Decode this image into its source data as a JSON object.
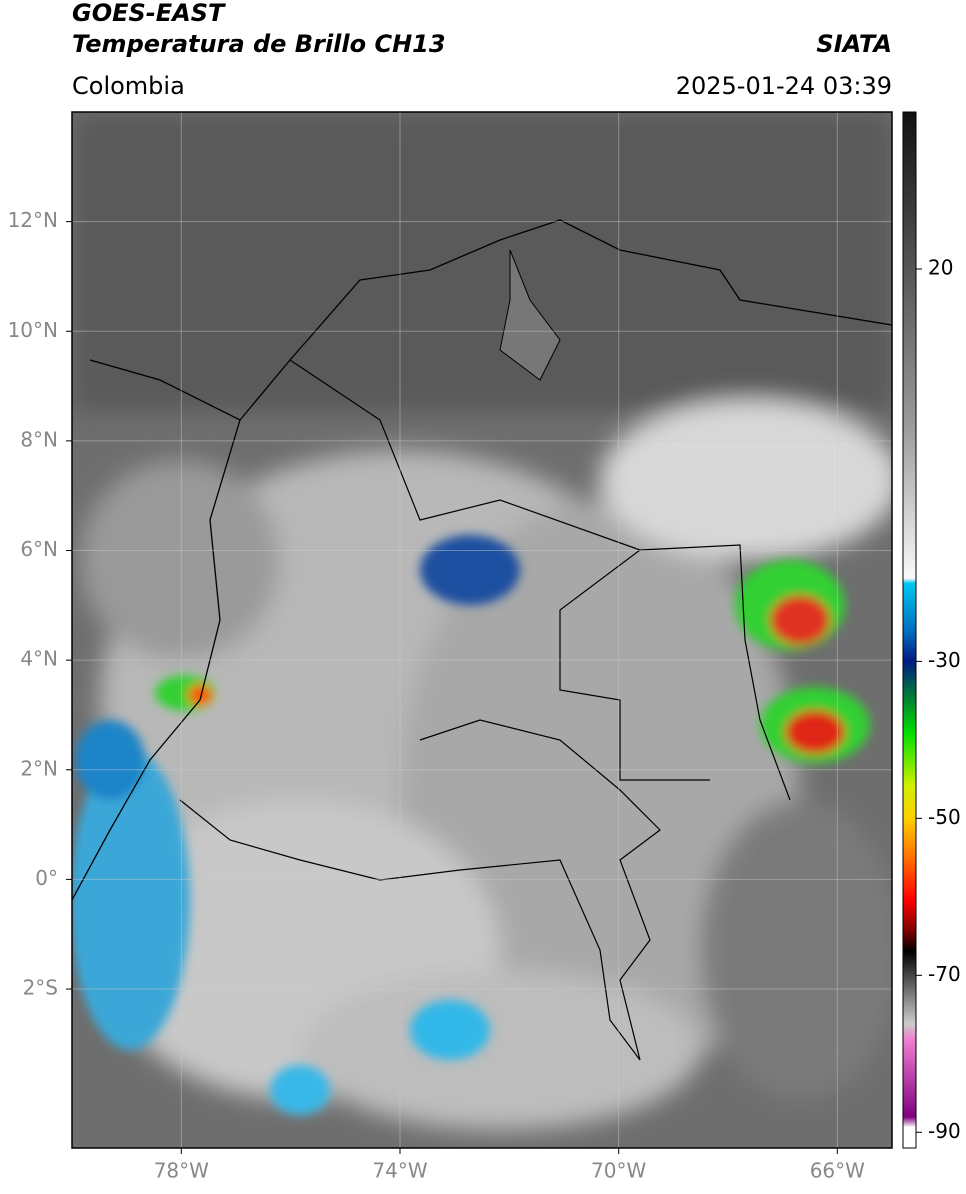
{
  "chart_data": {
    "type": "map",
    "title": "GOES-EAST",
    "subtitle": "Temperatura de Brillo CH13",
    "source": "SIATA",
    "region": "Colombia",
    "timestamp": "2025-01-24 03:39",
    "xlim": [
      -80,
      -65
    ],
    "ylim": [
      -4.9,
      14
    ],
    "xticks": [
      {
        "value": -78,
        "label": "78°W"
      },
      {
        "value": -74,
        "label": "74°W"
      },
      {
        "value": -70,
        "label": "70°W"
      },
      {
        "value": -66,
        "label": "66°W"
      }
    ],
    "yticks": [
      {
        "value": 12,
        "label": "12°N"
      },
      {
        "value": 10,
        "label": "10°N"
      },
      {
        "value": 8,
        "label": "8°N"
      },
      {
        "value": 6,
        "label": "6°N"
      },
      {
        "value": 4,
        "label": "4°N"
      },
      {
        "value": 2,
        "label": "2°N"
      },
      {
        "value": 0,
        "label": "0°"
      },
      {
        "value": -2,
        "label": "2°S"
      }
    ],
    "grid": true,
    "colorbar": {
      "lim": [
        -92,
        40
      ],
      "ticks": [
        20,
        -30,
        -50,
        -70,
        -90
      ]
    }
  }
}
